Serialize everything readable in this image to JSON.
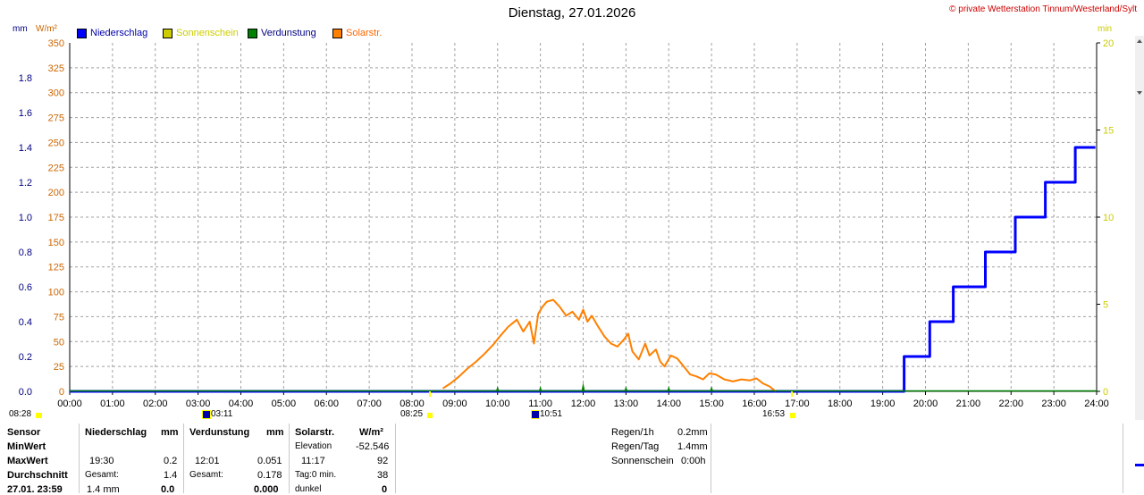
{
  "header": {
    "title": "Dienstag, 27.01.2026",
    "copyright": "© private Wetterstation Tinnum/Westerland/Sylt",
    "unit_mm": "mm",
    "unit_wm2": "W/m²",
    "unit_min": "min"
  },
  "legend": [
    {
      "label": "Niederschlag",
      "color": "#0000ff",
      "text_color": "#0000aa"
    },
    {
      "label": "Sonnenschein",
      "color": "#cccc00",
      "text_color": "#cccc00"
    },
    {
      "label": "Verdunstung",
      "color": "#008000",
      "text_color": "#000080"
    },
    {
      "label": "Solarstr.",
      "color": "#ff8000",
      "text_color": "#ff6600"
    }
  ],
  "chart_data": {
    "type": "line",
    "title": "Dienstag, 27.01.2026",
    "x_ticks": [
      "00:00",
      "01:00",
      "02:00",
      "03:00",
      "04:00",
      "05:00",
      "06:00",
      "07:00",
      "08:00",
      "09:00",
      "10:00",
      "11:00",
      "12:00",
      "13:00",
      "14:00",
      "15:00",
      "16:00",
      "17:00",
      "18:00",
      "19:00",
      "20:00",
      "21:00",
      "22:00",
      "23:00",
      "24:00"
    ],
    "xlim_hours": [
      0,
      24
    ],
    "y_left_mm": {
      "unit": "mm",
      "range": [
        0,
        2.0
      ],
      "ticks": [
        "0.0",
        "0.2",
        "0.4",
        "0.6",
        "0.8",
        "1.0",
        "1.2",
        "1.4",
        "1.6",
        "1.8"
      ]
    },
    "y_left_wm2": {
      "unit": "W/m²",
      "range": [
        0,
        350
      ],
      "ticks": [
        "0",
        "25",
        "50",
        "75",
        "100",
        "125",
        "150",
        "175",
        "200",
        "225",
        "250",
        "275",
        "300",
        "325",
        "350"
      ]
    },
    "y_right_min": {
      "unit": "min",
      "range": [
        0,
        20
      ],
      "ticks": [
        "0",
        "5",
        "10",
        "15",
        "20"
      ]
    },
    "grid": true,
    "legend_position": "top-left",
    "series": [
      {
        "name": "Niederschlag",
        "axis": "mm",
        "color": "#0000ff",
        "step": true,
        "x": [
          0.0,
          19.5,
          19.5,
          20.1,
          20.1,
          20.65,
          20.65,
          21.4,
          21.4,
          22.1,
          22.1,
          22.8,
          22.8,
          23.5,
          23.5,
          23.97
        ],
        "y": [
          0.0,
          0.0,
          0.2,
          0.2,
          0.4,
          0.4,
          0.6,
          0.6,
          0.8,
          0.8,
          1.0,
          1.0,
          1.2,
          1.2,
          1.4,
          1.4
        ]
      },
      {
        "name": "Solarstr.",
        "axis": "wm2",
        "color": "#ff8000",
        "x": [
          8.72,
          8.9,
          9.1,
          9.3,
          9.5,
          9.7,
          9.9,
          10.05,
          10.25,
          10.45,
          10.6,
          10.75,
          10.85,
          10.95,
          11.05,
          11.15,
          11.3,
          11.45,
          11.6,
          11.75,
          11.9,
          12.0,
          12.1,
          12.2,
          12.35,
          12.5,
          12.65,
          12.8,
          12.95,
          13.05,
          13.15,
          13.3,
          13.45,
          13.55,
          13.7,
          13.8,
          13.9,
          14.05,
          14.2,
          14.35,
          14.5,
          14.65,
          14.8,
          14.95,
          15.1,
          15.3,
          15.5,
          15.7,
          15.9,
          16.05,
          16.2,
          16.35,
          16.5
        ],
        "y": [
          3,
          8,
          15,
          23,
          30,
          38,
          47,
          55,
          65,
          72,
          60,
          70,
          48,
          78,
          85,
          90,
          92,
          85,
          76,
          80,
          72,
          82,
          70,
          76,
          65,
          55,
          48,
          45,
          52,
          58,
          40,
          32,
          48,
          36,
          42,
          30,
          25,
          36,
          33,
          25,
          17,
          15,
          12,
          18,
          17,
          12,
          10,
          12,
          11,
          13,
          8,
          5,
          0
        ]
      },
      {
        "name": "Verdunstung",
        "axis": "mm",
        "color": "#008000",
        "spikes_x": [
          10.0,
          11.0,
          12.0,
          13.0,
          14.0,
          15.0
        ],
        "spikes_y": [
          0.03,
          0.03,
          0.051,
          0.03,
          0.03,
          0.03
        ]
      }
    ]
  },
  "markers": {
    "sunrise_left": "08:28",
    "moon_icon_time": "03:11",
    "sunrise_bottom": "08:25",
    "moon_icon_time_2": "10:51",
    "sunset": "16:53"
  },
  "table": {
    "row_labels": [
      "Sensor",
      "MinWert",
      "MaxWert",
      "Durchschnitt",
      "27.01. 23:59"
    ],
    "niederschlag": {
      "header": "Niederschlag",
      "unit": "mm",
      "max_time": "19:30",
      "max_value": "0.2",
      "total_label": "Gesamt:",
      "total_value": "1.4",
      "last_value": "1.4 mm",
      "last_bold": "0.0"
    },
    "verdunstung": {
      "header": "Verdunstung",
      "unit": "mm",
      "max_time": "12:01",
      "max_value": "0.051",
      "total_label": "Gesamt:",
      "total_value": "0.178",
      "last_bold": "0.000"
    },
    "solar": {
      "header": "Solarstr.",
      "unit": "W/m²",
      "elevation_label": "Elevation",
      "elevation_value": "-52.546",
      "max_time": "11:17",
      "max_value": "92",
      "tag_label": "Tag:0 min.",
      "tag_value": "38",
      "dunkel_label": "dunkel",
      "dunkel_value": "0"
    },
    "summary": {
      "regen_1h_label": "Regen/1h",
      "regen_1h_value": "0.2mm",
      "regen_tag_label": "Regen/Tag",
      "regen_tag_value": "1.4mm",
      "sonnenschein_label": "Sonnenschein",
      "sonnenschein_value": "0:00h"
    }
  }
}
